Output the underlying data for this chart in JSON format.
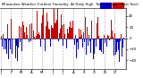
{
  "n_days": 365,
  "seed": 42,
  "bar_width": 1.0,
  "blue_color": "#0000cc",
  "red_color": "#cc0000",
  "background_color": "#ffffff",
  "grid_color": "#999999",
  "ylim": [
    -55,
    55
  ],
  "n_grid_lines": 13,
  "seasonal_amplitude": 12,
  "noise_std": 22,
  "phase_shift": 60,
  "tick_fontsize": 2.8
}
